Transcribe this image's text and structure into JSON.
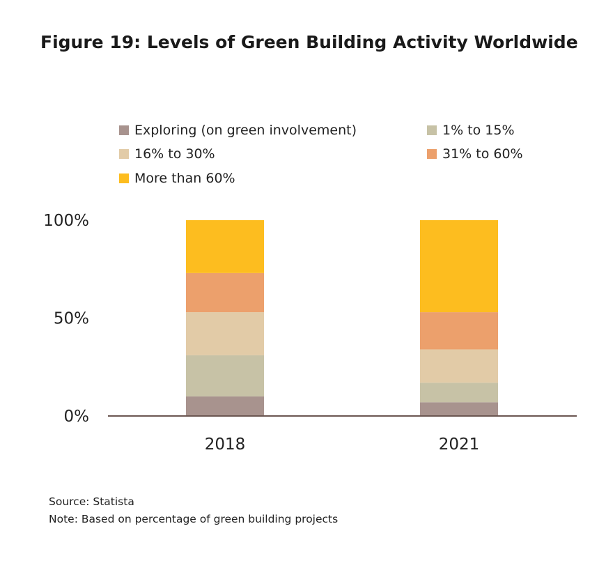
{
  "title": "Figure 19: Levels of Green Building Activity Worldwide",
  "legend": [
    {
      "label": "Exploring (on green involvement)",
      "color": "#a8938e"
    },
    {
      "label": "1% to 15%",
      "color": "#c7c2a6"
    },
    {
      "label": "16% to 30%",
      "color": "#e2cba7"
    },
    {
      "label": "31% to 60%",
      "color": "#eca06c"
    },
    {
      "label": "More than 60%",
      "color": "#fdbd1f"
    }
  ],
  "chart_data": {
    "type": "bar",
    "stacked": true,
    "categories": [
      "2018",
      "2021"
    ],
    "series": [
      {
        "name": "Exploring (on green involvement)",
        "color": "#a8938e",
        "values": [
          10,
          7
        ]
      },
      {
        "name": "1% to 15%",
        "color": "#c7c2a6",
        "values": [
          21,
          10
        ]
      },
      {
        "name": "16% to 30%",
        "color": "#e2cba7",
        "values": [
          22,
          17
        ]
      },
      {
        "name": "31% to 60%",
        "color": "#eca06c",
        "values": [
          20,
          19
        ]
      },
      {
        "name": "More than 60%",
        "color": "#fdbd1f",
        "values": [
          27,
          47
        ]
      }
    ],
    "yticks": [
      "0%",
      "50%",
      "100%"
    ],
    "ylim": [
      0,
      100
    ],
    "grid": false,
    "legend_position": "top"
  },
  "notes": {
    "source": "Source: Statista",
    "note": "Note: Based on percentage of green building projects"
  }
}
